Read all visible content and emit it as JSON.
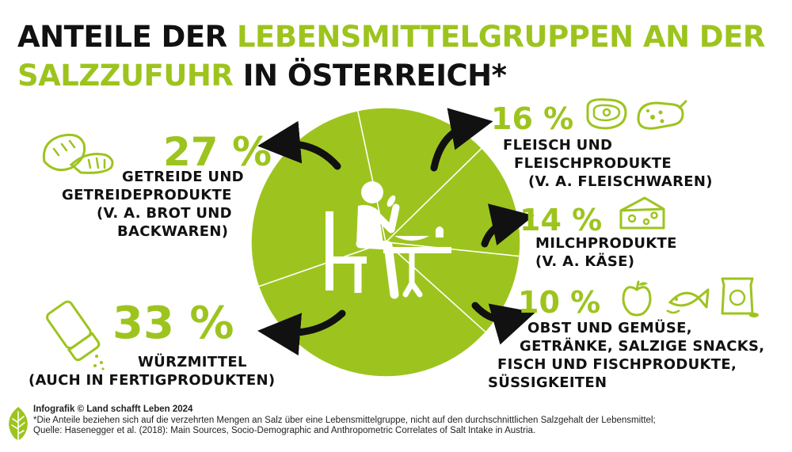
{
  "title": {
    "part1": "ANTEILE DER ",
    "part2": "LEBENSMITTELGRUPPEN AN DER",
    "part3": "SALZZUFUHR",
    "part4": " IN ÖSTERREICH*"
  },
  "colors": {
    "accent": "#9dc41e",
    "text": "#111111",
    "background": "#ffffff",
    "divider": "#ffffff"
  },
  "chart_data": {
    "type": "pie",
    "title": "ANTEILE DER LEBENSMITTELGRUPPEN AN DER SALZZUFUHR IN ÖSTERREICH*",
    "series": [
      {
        "values": [
          16,
          14,
          10,
          33,
          27
        ],
        "categories": [
          "FLEISCH UND FLEISCHPRODUKTE (V. A. FLEISCHWAREN)",
          "MILCHPRODUKTE (V. A. KÄSE)",
          "OBST UND GEMÜSE, GETRÄNKE, SALZIGE SNACKS, FISCH UND FISCHPRODUKTE, SÜSSIGKEITEN",
          "WÜRZMITTEL (AUCH IN FERTIGPRODUKTEN)",
          "GETREIDE UND GETREIDEPRODUKTE (V. A. BROT UND BACKWAREN)"
        ]
      }
    ],
    "unit": "%",
    "legend": "none"
  },
  "segments": [
    {
      "pct": "16 %",
      "lines": [
        "FLEISCH UND",
        "FLEISCHPRODUKTE",
        "(V. A. FLEISCHWAREN)"
      ],
      "icons": [
        "steak-icon",
        "sausage-icon"
      ]
    },
    {
      "pct": "14 %",
      "lines": [
        "MILCHPRODUKTE",
        "(V. A. KÄSE)"
      ],
      "icons": [
        "cheese-icon"
      ]
    },
    {
      "pct": "10 %",
      "lines": [
        "OBST UND GEMÜSE,",
        "GETRÄNKE, SALZIGE SNACKS,",
        "FISCH UND FISCHPRODUKTE,",
        "SÜSSIGKEITEN"
      ],
      "icons": [
        "apple-icon",
        "fish-icon",
        "snack-bag-icon"
      ]
    },
    {
      "pct": "33 %",
      "lines": [
        "WÜRZMITTEL",
        "(AUCH IN FERTIGPRODUKTEN)"
      ],
      "icons": [
        "salt-shaker-icon"
      ]
    },
    {
      "pct": "27 %",
      "lines": [
        "GETREIDE UND",
        "GETREIDEPRODUKTE",
        "(V. A. BROT UND",
        "BACKWAREN)"
      ],
      "icons": [
        "bread-icon"
      ]
    }
  ],
  "center_icon": "person-eating-icon",
  "footer": {
    "credit": "Infografik © Land schafft Leben 2024",
    "note": "*Die Anteile beziehen sich auf die verzehrten Mengen an Salz über eine Lebensmittelgruppe, nicht auf den durchschnittlichen Salzgehalt der Lebensmittel;",
    "source": "Quelle: Hasenegger et al. (2018): Main Sources, Socio-Demographic and Anthropometric Correlates of Salt Intake in Austria."
  },
  "logo_icon": "leaf-logo-icon"
}
